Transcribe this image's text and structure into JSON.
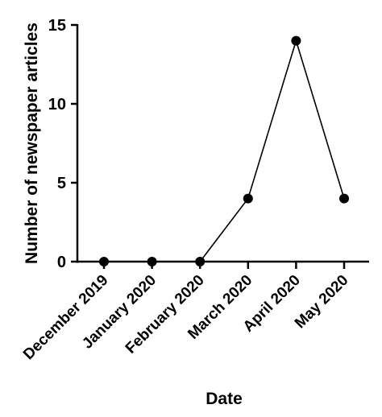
{
  "chart_data": {
    "type": "line",
    "categories": [
      "December 2019",
      "January 2020",
      "February 2020",
      "March 2020",
      "April 2020",
      "May 2020"
    ],
    "series": [
      {
        "values": [
          0,
          0,
          0,
          4,
          14,
          4
        ]
      }
    ],
    "xlabel": "Date",
    "ylabel": "Number of newspaper articles",
    "ylim": [
      0,
      15
    ],
    "yticks": [
      0,
      5,
      10,
      15
    ],
    "grid": false,
    "legend": "none",
    "colors": {
      "line": "#000000",
      "marker": "#000000",
      "axis": "#000000"
    }
  }
}
